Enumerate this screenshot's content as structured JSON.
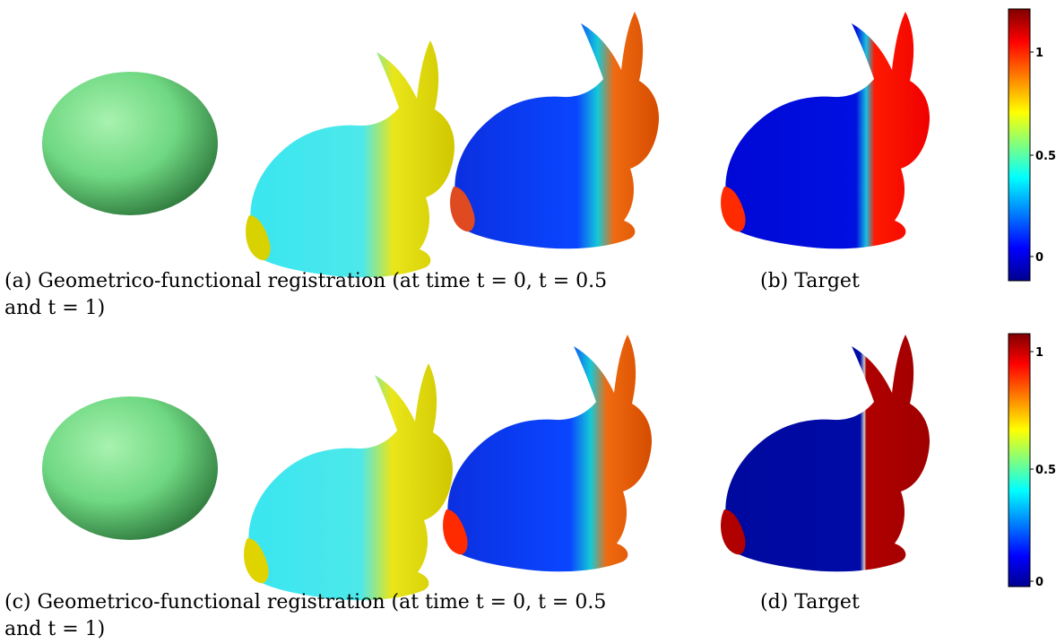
{
  "figure": {
    "rows": [
      {
        "id": "row1",
        "caption_a": "(a) Geometrico-functional registration (at time t = 0, t = 0.5",
        "caption_a_line2": "and t = 1)",
        "caption_b": "(b) Target",
        "colorbar": {
          "ticks": [
            "1",
            "0.5",
            "0"
          ],
          "range": [
            -0.1,
            1.2
          ]
        }
      },
      {
        "id": "row2",
        "caption_a": "(c) Geometrico-functional registration (at time t = 0, t = 0.5",
        "caption_a_line2": "and t = 1)",
        "caption_b": "(d) Target",
        "colorbar": {
          "ticks": [
            "1",
            "0.5",
            "0"
          ],
          "range": [
            -0.05,
            1.08
          ]
        }
      }
    ],
    "colormap": [
      "#00008f",
      "#0000ff",
      "#00ffff",
      "#ffff00",
      "#ff0000",
      "#800000"
    ]
  }
}
